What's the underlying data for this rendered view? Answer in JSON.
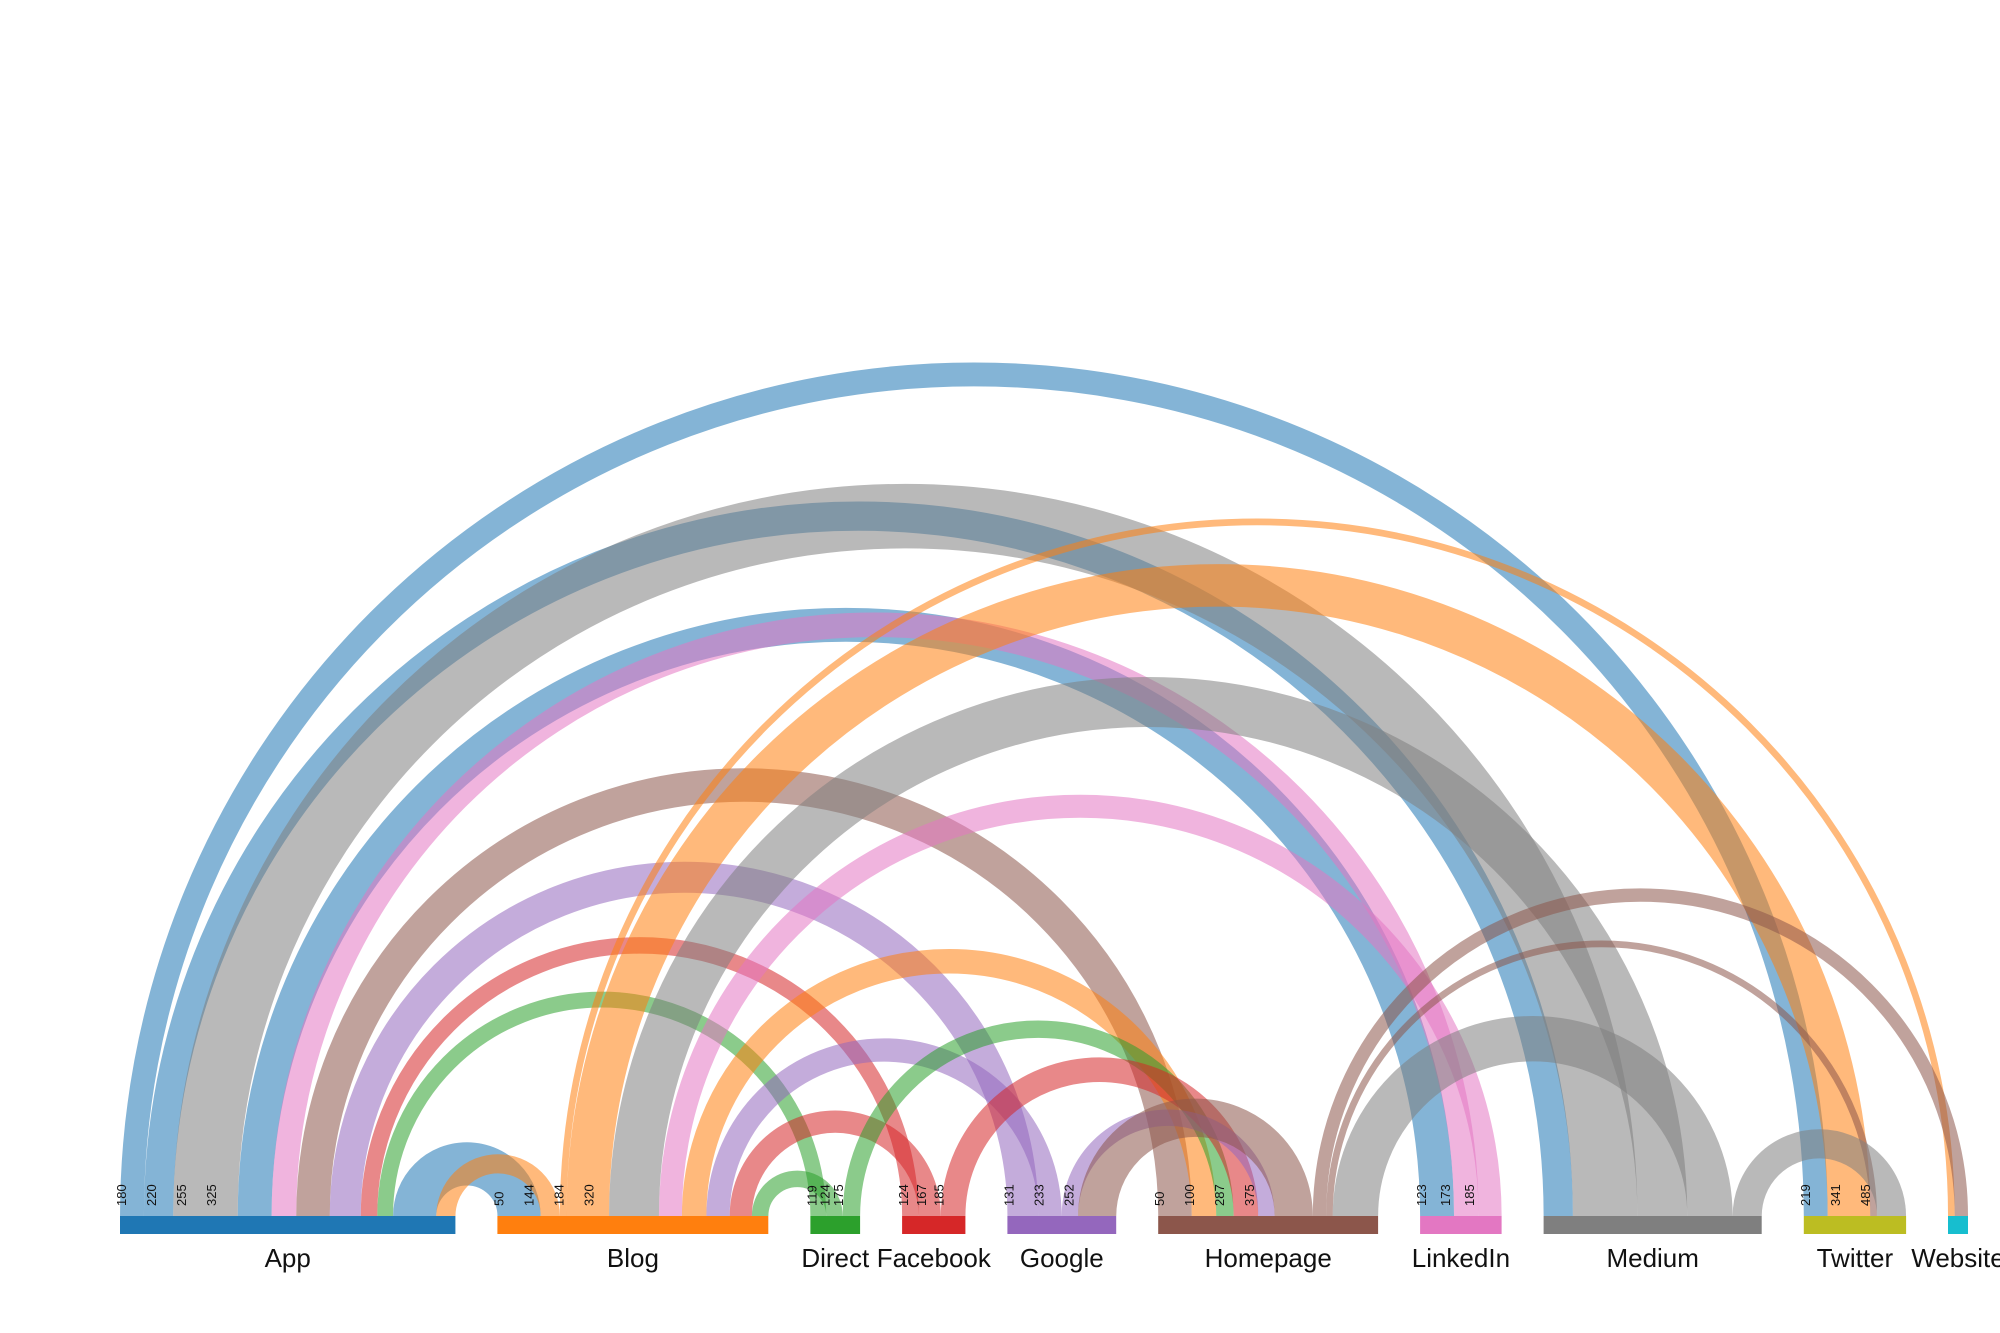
{
  "chart_data": {
    "type": "arc",
    "nodes": [
      {
        "id": "App",
        "label": "App",
        "color": "#1f77b4",
        "ticks": [
          "180",
          "220",
          "255",
          "325"
        ]
      },
      {
        "id": "Blog",
        "label": "Blog",
        "color": "#ff7f0e",
        "ticks": [
          "50",
          "144",
          "184",
          "320"
        ]
      },
      {
        "id": "Direct",
        "label": "Direct",
        "color": "#2ca02c",
        "ticks": [
          "119",
          "124",
          "175"
        ]
      },
      {
        "id": "Facebook",
        "label": "Facebook",
        "color": "#d62728",
        "ticks": [
          "124",
          "167",
          "185"
        ]
      },
      {
        "id": "Google",
        "label": "Google",
        "color": "#9467bd",
        "ticks": [
          "131",
          "233",
          "252"
        ]
      },
      {
        "id": "Homepage",
        "label": "Homepage",
        "color": "#8c564b",
        "ticks": [
          "50",
          "100",
          "287",
          "375"
        ]
      },
      {
        "id": "LinkedIn",
        "label": "LinkedIn",
        "color": "#e377c2",
        "ticks": [
          "123",
          "173",
          "185"
        ]
      },
      {
        "id": "Medium",
        "label": "Medium",
        "color": "#7f7f7f",
        "ticks": []
      },
      {
        "id": "Twitter",
        "label": "Twitter",
        "color": "#bcbd22",
        "ticks": [
          "219",
          "341",
          "485"
        ]
      },
      {
        "id": "Website",
        "label": "Website",
        "color": "#17becf",
        "ticks": []
      }
    ],
    "links": [
      {
        "source": "App",
        "target": "Twitter",
        "value": 180
      },
      {
        "source": "App",
        "target": "Medium",
        "value": 220
      },
      {
        "source": "App",
        "target": "LinkedIn",
        "value": 255
      },
      {
        "source": "App",
        "target": "Blog",
        "value": 325
      },
      {
        "source": "Direct",
        "target": "App",
        "value": 119
      },
      {
        "source": "Facebook",
        "target": "App",
        "value": 124
      },
      {
        "source": "Blog",
        "target": "App",
        "value": 144
      },
      {
        "source": "LinkedIn",
        "target": "App",
        "value": 185
      },
      {
        "source": "Google",
        "target": "App",
        "value": 233
      },
      {
        "source": "Homepage",
        "target": "App",
        "value": 252
      },
      {
        "source": "Medium",
        "target": "App",
        "value": 485
      },
      {
        "source": "Blog",
        "target": "Website",
        "value": 50
      },
      {
        "source": "Blog",
        "target": "Twitter",
        "value": 320
      },
      {
        "source": "Blog",
        "target": "Homepage",
        "value": 184
      },
      {
        "source": "Facebook",
        "target": "Blog",
        "value": 167
      },
      {
        "source": "Direct",
        "target": "Blog",
        "value": 124
      },
      {
        "source": "LinkedIn",
        "target": "Blog",
        "value": 173
      },
      {
        "source": "Google",
        "target": "Blog",
        "value": 175
      },
      {
        "source": "Medium",
        "target": "Blog",
        "value": 375
      },
      {
        "source": "Direct",
        "target": "Homepage",
        "value": 131
      },
      {
        "source": "Facebook",
        "target": "Homepage",
        "value": 185
      },
      {
        "source": "Google",
        "target": "Homepage",
        "value": 123
      },
      {
        "source": "Homepage",
        "target": "Website",
        "value": 100
      },
      {
        "source": "Homepage",
        "target": "Twitter",
        "value": 50
      },
      {
        "source": "Medium",
        "target": "Twitter",
        "value": 219
      },
      {
        "source": "Homepage",
        "target": "Google",
        "value": 287
      },
      {
        "source": "Medium",
        "target": "Homepage",
        "value": 341
      }
    ]
  }
}
